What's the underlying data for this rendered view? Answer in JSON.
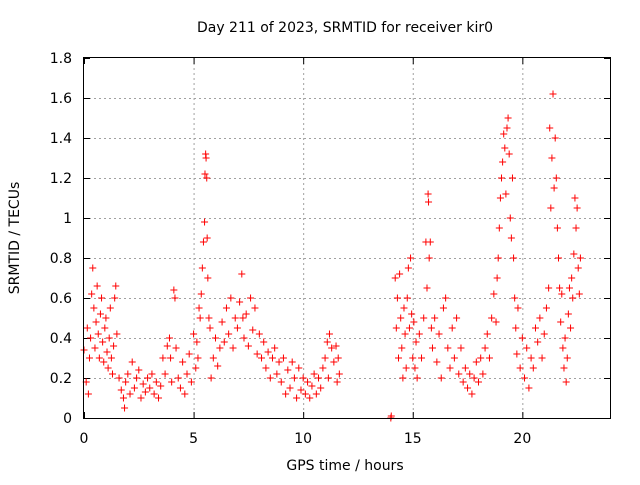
{
  "chart_data": {
    "type": "scatter",
    "title": "Day 211 of 2023, SRMTID for receiver kir0",
    "xlabel": "GPS time / hours",
    "ylabel": "SRMTID / TECUs",
    "xlim": [
      0,
      24
    ],
    "ylim": [
      0,
      1.8
    ],
    "xticks": [
      0,
      5,
      10,
      15,
      20
    ],
    "xtick_labels": [
      "0",
      "5",
      "10",
      "15",
      "20"
    ],
    "yticks": [
      0,
      0.2,
      0.4,
      0.6,
      0.8,
      1,
      1.2,
      1.4,
      1.6,
      1.8
    ],
    "ytick_labels": [
      "0",
      "0.2",
      "0.4",
      "0.6",
      "0.8",
      "1",
      "1.2",
      "1.4",
      "1.6",
      "1.8"
    ],
    "grid": true,
    "marker": "plus",
    "color": "#ff0000",
    "points": [
      {
        "x": 0.0,
        "y": 0.34
      },
      {
        "x": 0.1,
        "y": 0.18
      },
      {
        "x": 0.15,
        "y": 0.45
      },
      {
        "x": 0.2,
        "y": 0.12
      },
      {
        "x": 0.25,
        "y": 0.3
      },
      {
        "x": 0.3,
        "y": 0.4
      },
      {
        "x": 0.35,
        "y": 0.62
      },
      {
        "x": 0.4,
        "y": 0.75
      },
      {
        "x": 0.45,
        "y": 0.55
      },
      {
        "x": 0.5,
        "y": 0.35
      },
      {
        "x": 0.55,
        "y": 0.48
      },
      {
        "x": 0.6,
        "y": 0.66
      },
      {
        "x": 0.65,
        "y": 0.42
      },
      {
        "x": 0.7,
        "y": 0.3
      },
      {
        "x": 0.75,
        "y": 0.52
      },
      {
        "x": 0.8,
        "y": 0.6
      },
      {
        "x": 0.85,
        "y": 0.38
      },
      {
        "x": 0.9,
        "y": 0.28
      },
      {
        "x": 0.95,
        "y": 0.45
      },
      {
        "x": 1.0,
        "y": 0.5
      },
      {
        "x": 1.05,
        "y": 0.33
      },
      {
        "x": 1.1,
        "y": 0.25
      },
      {
        "x": 1.15,
        "y": 0.4
      },
      {
        "x": 1.2,
        "y": 0.55
      },
      {
        "x": 1.25,
        "y": 0.3
      },
      {
        "x": 1.3,
        "y": 0.22
      },
      {
        "x": 1.35,
        "y": 0.36
      },
      {
        "x": 1.4,
        "y": 0.6
      },
      {
        "x": 1.45,
        "y": 0.66
      },
      {
        "x": 1.5,
        "y": 0.42
      },
      {
        "x": 1.6,
        "y": 0.2
      },
      {
        "x": 1.7,
        "y": 0.14
      },
      {
        "x": 1.8,
        "y": 0.1
      },
      {
        "x": 1.85,
        "y": 0.05
      },
      {
        "x": 1.9,
        "y": 0.18
      },
      {
        "x": 2.0,
        "y": 0.22
      },
      {
        "x": 2.1,
        "y": 0.12
      },
      {
        "x": 2.2,
        "y": 0.28
      },
      {
        "x": 2.3,
        "y": 0.15
      },
      {
        "x": 2.4,
        "y": 0.2
      },
      {
        "x": 2.5,
        "y": 0.24
      },
      {
        "x": 2.6,
        "y": 0.1
      },
      {
        "x": 2.7,
        "y": 0.17
      },
      {
        "x": 2.8,
        "y": 0.13
      },
      {
        "x": 2.9,
        "y": 0.2
      },
      {
        "x": 3.0,
        "y": 0.15
      },
      {
        "x": 3.1,
        "y": 0.22
      },
      {
        "x": 3.2,
        "y": 0.12
      },
      {
        "x": 3.3,
        "y": 0.18
      },
      {
        "x": 3.4,
        "y": 0.1
      },
      {
        "x": 3.5,
        "y": 0.16
      },
      {
        "x": 3.6,
        "y": 0.3
      },
      {
        "x": 3.7,
        "y": 0.22
      },
      {
        "x": 3.8,
        "y": 0.36
      },
      {
        "x": 3.9,
        "y": 0.4
      },
      {
        "x": 3.95,
        "y": 0.3
      },
      {
        "x": 4.0,
        "y": 0.18
      },
      {
        "x": 4.1,
        "y": 0.64
      },
      {
        "x": 4.15,
        "y": 0.6
      },
      {
        "x": 4.2,
        "y": 0.35
      },
      {
        "x": 4.3,
        "y": 0.2
      },
      {
        "x": 4.4,
        "y": 0.15
      },
      {
        "x": 4.5,
        "y": 0.28
      },
      {
        "x": 4.6,
        "y": 0.12
      },
      {
        "x": 4.7,
        "y": 0.22
      },
      {
        "x": 4.8,
        "y": 0.32
      },
      {
        "x": 4.9,
        "y": 0.18
      },
      {
        "x": 5.0,
        "y": 0.42
      },
      {
        "x": 5.1,
        "y": 0.25
      },
      {
        "x": 5.15,
        "y": 0.38
      },
      {
        "x": 5.2,
        "y": 0.3
      },
      {
        "x": 5.25,
        "y": 0.55
      },
      {
        "x": 5.3,
        "y": 0.5
      },
      {
        "x": 5.35,
        "y": 0.62
      },
      {
        "x": 5.4,
        "y": 0.75
      },
      {
        "x": 5.45,
        "y": 0.88
      },
      {
        "x": 5.5,
        "y": 0.98
      },
      {
        "x": 5.52,
        "y": 1.22
      },
      {
        "x": 5.55,
        "y": 1.32
      },
      {
        "x": 5.57,
        "y": 1.3
      },
      {
        "x": 5.6,
        "y": 1.2
      },
      {
        "x": 5.62,
        "y": 0.9
      },
      {
        "x": 5.65,
        "y": 0.7
      },
      {
        "x": 5.7,
        "y": 0.5
      },
      {
        "x": 5.75,
        "y": 0.45
      },
      {
        "x": 5.8,
        "y": 0.2
      },
      {
        "x": 5.9,
        "y": 0.3
      },
      {
        "x": 6.0,
        "y": 0.4
      },
      {
        "x": 6.1,
        "y": 0.26
      },
      {
        "x": 6.2,
        "y": 0.35
      },
      {
        "x": 6.3,
        "y": 0.48
      },
      {
        "x": 6.4,
        "y": 0.38
      },
      {
        "x": 6.5,
        "y": 0.55
      },
      {
        "x": 6.6,
        "y": 0.42
      },
      {
        "x": 6.7,
        "y": 0.6
      },
      {
        "x": 6.8,
        "y": 0.35
      },
      {
        "x": 6.9,
        "y": 0.5
      },
      {
        "x": 7.0,
        "y": 0.45
      },
      {
        "x": 7.1,
        "y": 0.58
      },
      {
        "x": 7.2,
        "y": 0.72
      },
      {
        "x": 7.25,
        "y": 0.5
      },
      {
        "x": 7.3,
        "y": 0.4
      },
      {
        "x": 7.4,
        "y": 0.52
      },
      {
        "x": 7.5,
        "y": 0.36
      },
      {
        "x": 7.6,
        "y": 0.6
      },
      {
        "x": 7.7,
        "y": 0.44
      },
      {
        "x": 7.8,
        "y": 0.55
      },
      {
        "x": 7.9,
        "y": 0.32
      },
      {
        "x": 8.0,
        "y": 0.42
      },
      {
        "x": 8.1,
        "y": 0.3
      },
      {
        "x": 8.2,
        "y": 0.38
      },
      {
        "x": 8.3,
        "y": 0.25
      },
      {
        "x": 8.4,
        "y": 0.33
      },
      {
        "x": 8.5,
        "y": 0.2
      },
      {
        "x": 8.6,
        "y": 0.3
      },
      {
        "x": 8.7,
        "y": 0.35
      },
      {
        "x": 8.8,
        "y": 0.22
      },
      {
        "x": 8.9,
        "y": 0.28
      },
      {
        "x": 9.0,
        "y": 0.18
      },
      {
        "x": 9.1,
        "y": 0.3
      },
      {
        "x": 9.2,
        "y": 0.12
      },
      {
        "x": 9.3,
        "y": 0.24
      },
      {
        "x": 9.4,
        "y": 0.15
      },
      {
        "x": 9.5,
        "y": 0.28
      },
      {
        "x": 9.6,
        "y": 0.2
      },
      {
        "x": 9.7,
        "y": 0.1
      },
      {
        "x": 9.8,
        "y": 0.25
      },
      {
        "x": 9.9,
        "y": 0.14
      },
      {
        "x": 10.0,
        "y": 0.2
      },
      {
        "x": 10.1,
        "y": 0.12
      },
      {
        "x": 10.2,
        "y": 0.18
      },
      {
        "x": 10.3,
        "y": 0.1
      },
      {
        "x": 10.4,
        "y": 0.16
      },
      {
        "x": 10.5,
        "y": 0.22
      },
      {
        "x": 10.6,
        "y": 0.12
      },
      {
        "x": 10.7,
        "y": 0.2
      },
      {
        "x": 10.8,
        "y": 0.15
      },
      {
        "x": 10.9,
        "y": 0.25
      },
      {
        "x": 11.0,
        "y": 0.3
      },
      {
        "x": 11.1,
        "y": 0.38
      },
      {
        "x": 11.15,
        "y": 0.2
      },
      {
        "x": 11.2,
        "y": 0.42
      },
      {
        "x": 11.3,
        "y": 0.35
      },
      {
        "x": 11.4,
        "y": 0.28
      },
      {
        "x": 11.5,
        "y": 0.36
      },
      {
        "x": 11.55,
        "y": 0.18
      },
      {
        "x": 11.6,
        "y": 0.3
      },
      {
        "x": 11.65,
        "y": 0.22
      },
      {
        "x": 14.0,
        "y": 0.0
      },
      {
        "x": 14.02,
        "y": 0.01
      },
      {
        "x": 14.2,
        "y": 0.7
      },
      {
        "x": 14.25,
        "y": 0.45
      },
      {
        "x": 14.3,
        "y": 0.6
      },
      {
        "x": 14.35,
        "y": 0.3
      },
      {
        "x": 14.4,
        "y": 0.72
      },
      {
        "x": 14.45,
        "y": 0.5
      },
      {
        "x": 14.5,
        "y": 0.35
      },
      {
        "x": 14.55,
        "y": 0.2
      },
      {
        "x": 14.6,
        "y": 0.55
      },
      {
        "x": 14.65,
        "y": 0.42
      },
      {
        "x": 14.7,
        "y": 0.25
      },
      {
        "x": 14.75,
        "y": 0.6
      },
      {
        "x": 14.8,
        "y": 0.75
      },
      {
        "x": 14.85,
        "y": 0.45
      },
      {
        "x": 14.9,
        "y": 0.8
      },
      {
        "x": 14.95,
        "y": 0.52
      },
      {
        "x": 15.0,
        "y": 0.3
      },
      {
        "x": 15.05,
        "y": 0.48
      },
      {
        "x": 15.1,
        "y": 0.25
      },
      {
        "x": 15.15,
        "y": 0.38
      },
      {
        "x": 15.2,
        "y": 0.2
      },
      {
        "x": 15.3,
        "y": 0.42
      },
      {
        "x": 15.4,
        "y": 0.3
      },
      {
        "x": 15.5,
        "y": 0.5
      },
      {
        "x": 15.6,
        "y": 0.88
      },
      {
        "x": 15.65,
        "y": 0.65
      },
      {
        "x": 15.7,
        "y": 1.12
      },
      {
        "x": 15.72,
        "y": 1.08
      },
      {
        "x": 15.75,
        "y": 0.8
      },
      {
        "x": 15.8,
        "y": 0.88
      },
      {
        "x": 15.85,
        "y": 0.45
      },
      {
        "x": 15.9,
        "y": 0.35
      },
      {
        "x": 16.0,
        "y": 0.5
      },
      {
        "x": 16.1,
        "y": 0.28
      },
      {
        "x": 16.2,
        "y": 0.42
      },
      {
        "x": 16.3,
        "y": 0.2
      },
      {
        "x": 16.4,
        "y": 0.55
      },
      {
        "x": 16.5,
        "y": 0.6
      },
      {
        "x": 16.6,
        "y": 0.35
      },
      {
        "x": 16.7,
        "y": 0.25
      },
      {
        "x": 16.8,
        "y": 0.45
      },
      {
        "x": 16.9,
        "y": 0.3
      },
      {
        "x": 17.0,
        "y": 0.5
      },
      {
        "x": 17.1,
        "y": 0.22
      },
      {
        "x": 17.2,
        "y": 0.35
      },
      {
        "x": 17.3,
        "y": 0.18
      },
      {
        "x": 17.4,
        "y": 0.25
      },
      {
        "x": 17.5,
        "y": 0.15
      },
      {
        "x": 17.6,
        "y": 0.22
      },
      {
        "x": 17.7,
        "y": 0.12
      },
      {
        "x": 17.8,
        "y": 0.2
      },
      {
        "x": 17.9,
        "y": 0.28
      },
      {
        "x": 18.0,
        "y": 0.18
      },
      {
        "x": 18.1,
        "y": 0.3
      },
      {
        "x": 18.2,
        "y": 0.22
      },
      {
        "x": 18.3,
        "y": 0.35
      },
      {
        "x": 18.4,
        "y": 0.42
      },
      {
        "x": 18.5,
        "y": 0.3
      },
      {
        "x": 18.6,
        "y": 0.5
      },
      {
        "x": 18.7,
        "y": 0.62
      },
      {
        "x": 18.8,
        "y": 0.48
      },
      {
        "x": 18.85,
        "y": 0.7
      },
      {
        "x": 18.9,
        "y": 0.8
      },
      {
        "x": 18.95,
        "y": 0.95
      },
      {
        "x": 19.0,
        "y": 1.1
      },
      {
        "x": 19.05,
        "y": 1.2
      },
      {
        "x": 19.1,
        "y": 1.28
      },
      {
        "x": 19.15,
        "y": 1.42
      },
      {
        "x": 19.2,
        "y": 1.35
      },
      {
        "x": 19.25,
        "y": 1.12
      },
      {
        "x": 19.3,
        "y": 1.45
      },
      {
        "x": 19.35,
        "y": 1.5
      },
      {
        "x": 19.4,
        "y": 1.32
      },
      {
        "x": 19.45,
        "y": 1.0
      },
      {
        "x": 19.5,
        "y": 0.9
      },
      {
        "x": 19.55,
        "y": 1.2
      },
      {
        "x": 19.6,
        "y": 0.8
      },
      {
        "x": 19.65,
        "y": 0.6
      },
      {
        "x": 19.7,
        "y": 0.45
      },
      {
        "x": 19.75,
        "y": 0.32
      },
      {
        "x": 19.8,
        "y": 0.55
      },
      {
        "x": 19.9,
        "y": 0.25
      },
      {
        "x": 20.0,
        "y": 0.4
      },
      {
        "x": 20.1,
        "y": 0.2
      },
      {
        "x": 20.2,
        "y": 0.35
      },
      {
        "x": 20.3,
        "y": 0.15
      },
      {
        "x": 20.4,
        "y": 0.3
      },
      {
        "x": 20.5,
        "y": 0.25
      },
      {
        "x": 20.6,
        "y": 0.45
      },
      {
        "x": 20.7,
        "y": 0.38
      },
      {
        "x": 20.8,
        "y": 0.5
      },
      {
        "x": 20.9,
        "y": 0.3
      },
      {
        "x": 21.0,
        "y": 0.42
      },
      {
        "x": 21.1,
        "y": 0.55
      },
      {
        "x": 21.2,
        "y": 0.65
      },
      {
        "x": 21.25,
        "y": 1.45
      },
      {
        "x": 21.3,
        "y": 1.05
      },
      {
        "x": 21.35,
        "y": 1.3
      },
      {
        "x": 21.4,
        "y": 1.62
      },
      {
        "x": 21.45,
        "y": 1.15
      },
      {
        "x": 21.5,
        "y": 1.4
      },
      {
        "x": 21.55,
        "y": 1.2
      },
      {
        "x": 21.6,
        "y": 0.95
      },
      {
        "x": 21.65,
        "y": 0.8
      },
      {
        "x": 21.7,
        "y": 0.65
      },
      {
        "x": 21.75,
        "y": 0.48
      },
      {
        "x": 21.8,
        "y": 0.62
      },
      {
        "x": 21.85,
        "y": 0.35
      },
      {
        "x": 21.9,
        "y": 0.25
      },
      {
        "x": 21.95,
        "y": 0.4
      },
      {
        "x": 22.0,
        "y": 0.18
      },
      {
        "x": 22.05,
        "y": 0.3
      },
      {
        "x": 22.1,
        "y": 0.52
      },
      {
        "x": 22.15,
        "y": 0.65
      },
      {
        "x": 22.2,
        "y": 0.45
      },
      {
        "x": 22.25,
        "y": 0.7
      },
      {
        "x": 22.3,
        "y": 0.6
      },
      {
        "x": 22.35,
        "y": 0.82
      },
      {
        "x": 22.4,
        "y": 1.1
      },
      {
        "x": 22.45,
        "y": 0.95
      },
      {
        "x": 22.5,
        "y": 1.05
      },
      {
        "x": 22.55,
        "y": 0.75
      },
      {
        "x": 22.6,
        "y": 0.62
      },
      {
        "x": 22.65,
        "y": 0.8
      }
    ]
  }
}
